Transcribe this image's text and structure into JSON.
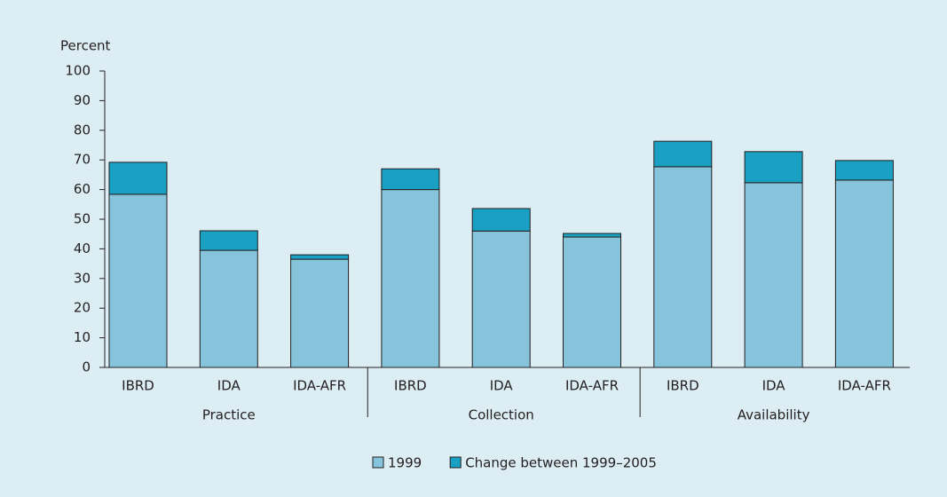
{
  "chart_data": {
    "type": "stacked_bar",
    "y_axis_label": "Percent",
    "categories": [
      "IBRD",
      "IDA",
      "IDA-AFR",
      "IBRD",
      "IDA",
      "IDA-AFR",
      "IBRD",
      "IDA",
      "IDA-AFR"
    ],
    "groups": [
      "Practice",
      "Collection",
      "Availability"
    ],
    "series": [
      {
        "name": "1999",
        "color": "#86c4dc",
        "values": [
          58.4,
          39.5,
          36.5,
          60,
          46,
          44,
          67.7,
          62.3,
          63.2
        ]
      },
      {
        "name": "Change between 1999–2005",
        "color": "#1aa0c2",
        "values": [
          10.8,
          6.6,
          1.5,
          7,
          7.6,
          1.2,
          8.6,
          10.5,
          6.6
        ]
      }
    ],
    "ylim": [
      0,
      100
    ],
    "yticks": [
      0,
      10,
      20,
      30,
      40,
      50,
      60,
      70,
      80,
      90,
      100
    ],
    "grid": false
  }
}
